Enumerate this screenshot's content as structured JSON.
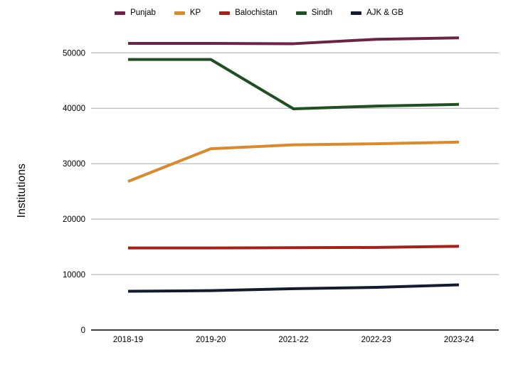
{
  "chart_data": {
    "type": "line",
    "title": "",
    "xlabel": "",
    "ylabel": "Institutions",
    "categories": [
      "2018-19",
      "2019-20",
      "2021-22",
      "2022-23",
      "2023-24"
    ],
    "series": [
      {
        "name": "Punjab",
        "color": "#6c2346",
        "values": [
          51700,
          51700,
          51650,
          52450,
          52700
        ]
      },
      {
        "name": "KP",
        "color": "#d98a2d",
        "values": [
          26800,
          32700,
          33400,
          33600,
          33900
        ]
      },
      {
        "name": "Balochistan",
        "color": "#a32119",
        "values": [
          14800,
          14800,
          14850,
          14900,
          15100
        ]
      },
      {
        "name": "Sindh",
        "color": "#204f22",
        "values": [
          48800,
          48800,
          39900,
          40400,
          40700
        ]
      },
      {
        "name": "AJK & GB",
        "color": "#131c2e",
        "values": [
          7000,
          7100,
          7450,
          7700,
          8150
        ]
      }
    ],
    "yticks": [
      0,
      10000,
      20000,
      30000,
      40000,
      50000
    ],
    "ylim": [
      0,
      55000
    ],
    "grid": "horizontal",
    "legend_position": "top"
  },
  "colors": {
    "background": "#ffffff",
    "gridline": "#a8a8a8",
    "axis": "#000000",
    "text": "#000000"
  }
}
